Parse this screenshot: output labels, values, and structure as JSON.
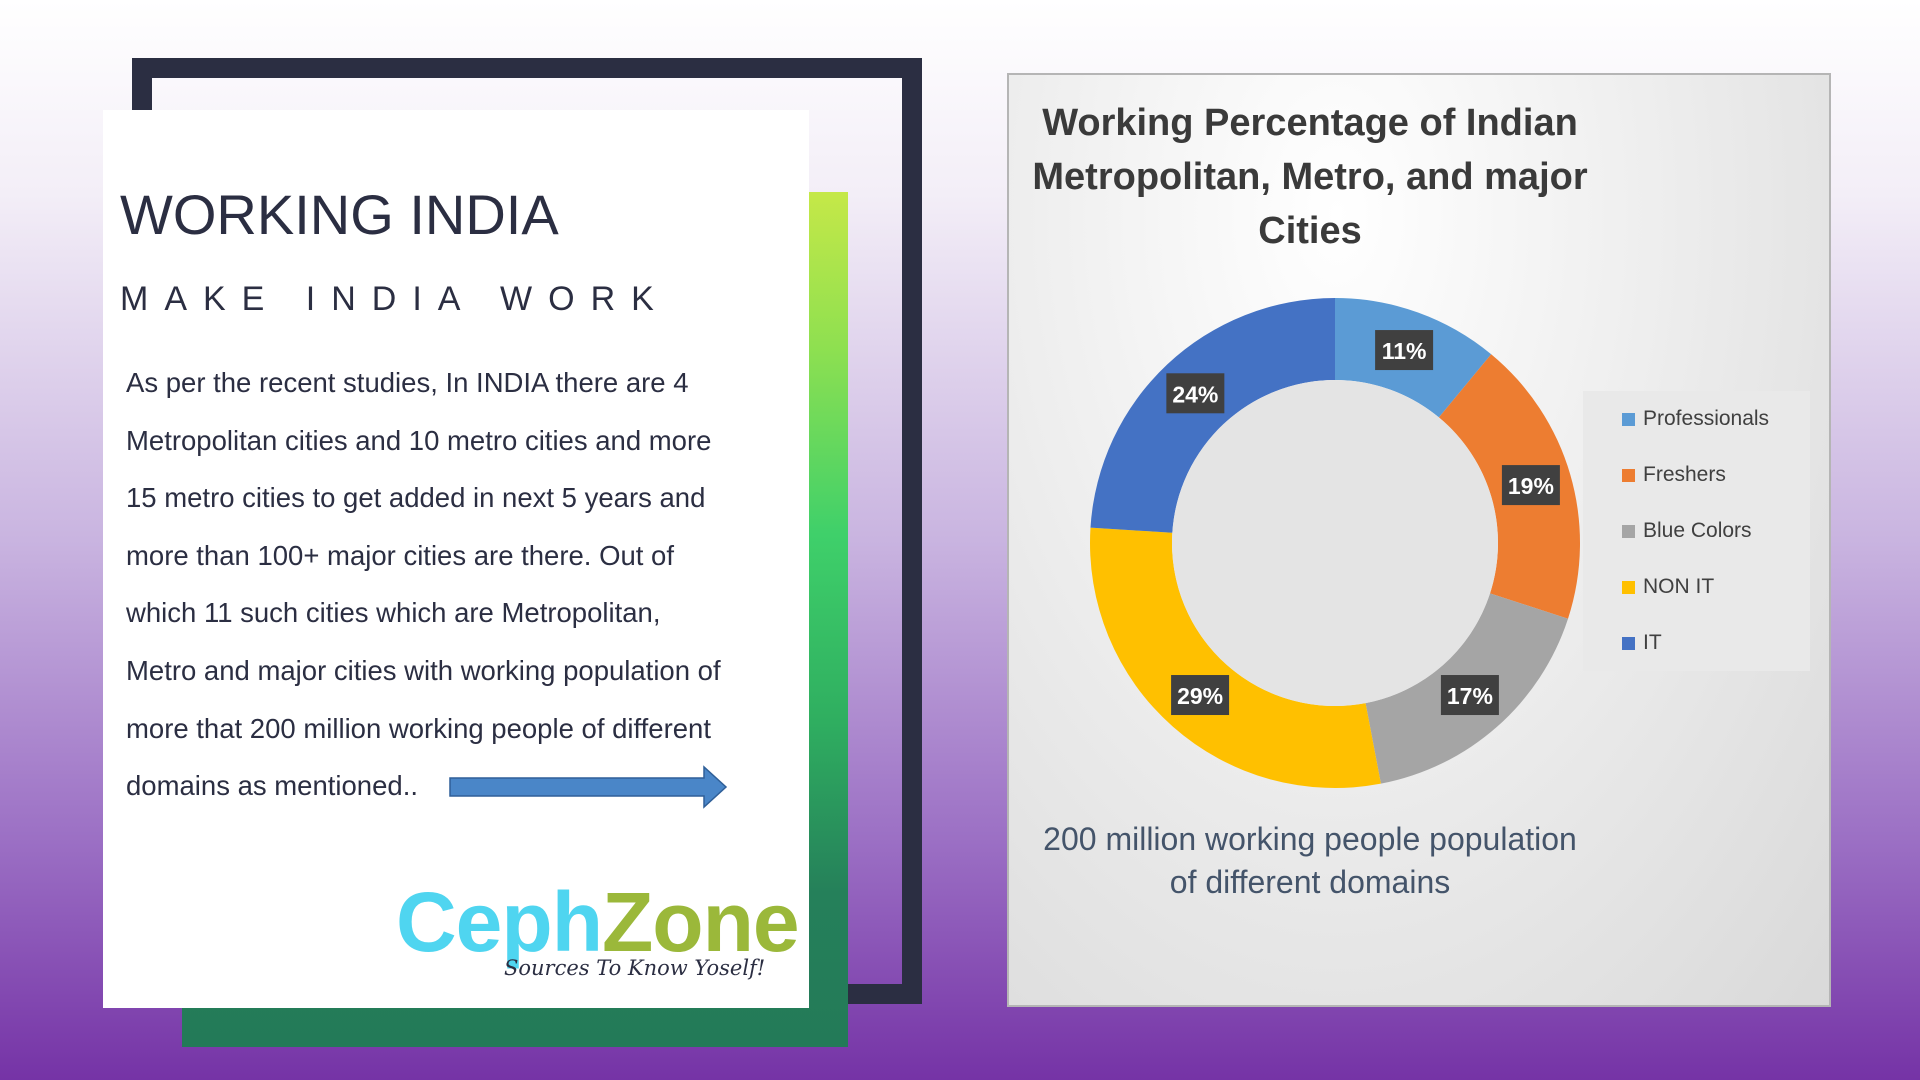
{
  "slide": {
    "title": "WORKING INDIA",
    "subtitle": "MAKE INDIA WORK",
    "body_lines": [
      "As per the recent studies, In INDIA there are 4",
      "Metropolitan cities and 10 metro cities and more",
      "15 metro cities to get added in next 5 years and",
      "more than 100+ major cities are there. Out of",
      "which 11 such cities which are Metropolitan,",
      "Metro and major cities with working population of",
      "more that 200 million working people of different",
      "domains as mentioned.."
    ],
    "logo": {
      "part1": "Ceph",
      "part2": "Zone",
      "tagline": "Sources To Know Yoself!"
    },
    "accent_colors": {
      "dark_frame": "#2b2e42",
      "arrow": "#4a86c8"
    }
  },
  "chart_data": {
    "type": "pie",
    "variant": "doughnut",
    "title": "Working Percentage of Indian Metropolitan, Metro, and major Cities",
    "title_lines": [
      "Working Percentage of Indian",
      "Metropolitan, Metro, and major",
      "Cities"
    ],
    "categories": [
      "Professionals",
      "Freshers",
      "Blue Colors",
      "NON IT",
      "IT"
    ],
    "values": [
      11,
      19,
      17,
      29,
      24
    ],
    "value_labels": [
      "11%",
      "19%",
      "17%",
      "29%",
      "24%"
    ],
    "colors": [
      "#5b9bd5",
      "#ed7d31",
      "#a5a5a5",
      "#ffc000",
      "#4472c4"
    ],
    "legend_position": "right",
    "footer_lines": [
      "200 million working people population",
      "of different domains"
    ]
  }
}
